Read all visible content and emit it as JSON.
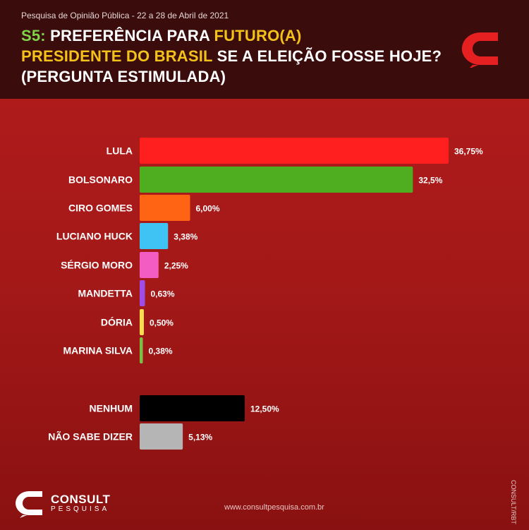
{
  "header": {
    "survey_info": "Pesquisa de Opinião Pública - 22 a 28 de Abril de 2021",
    "title_prefix": "S5:",
    "title_part1": " PREFERÊNCIA PARA ",
    "title_highlight1": "FUTURO(A)",
    "title_highlight2": "PRESIDENTE DO BRASIL",
    "title_part2": " SE A ELEIÇÃO FOSSE HOJE? (PERGUNTA ESTIMULADA)"
  },
  "chart_data": {
    "type": "bar",
    "orientation": "horizontal",
    "title": "S5: PREFERÊNCIA PARA FUTURO(A) PRESIDENTE DO BRASIL SE A ELEIÇÃO FOSSE HOJE? (PERGUNTA ESTIMULADA)",
    "xlim": [
      0,
      36.75
    ],
    "categories": [
      "LULA",
      "BOLSONARO",
      "CIRO GOMES",
      "LUCIANO HUCK",
      "SÉRGIO MORO",
      "MANDETTA",
      "DÓRIA",
      "MARINA SILVA",
      "NENHUM",
      "NÃO SABE DIZER"
    ],
    "values": [
      36.75,
      32.5,
      6.0,
      3.38,
      2.25,
      0.63,
      0.5,
      0.38,
      12.5,
      5.13
    ],
    "labels": [
      "36,75%",
      "32,5%",
      "6,00%",
      "3,38%",
      "2,25%",
      "0,63%",
      "0,50%",
      "0,38%",
      "12,50%",
      "5,13%"
    ],
    "colors": [
      "#ff1f1f",
      "#4fae1f",
      "#ff6314",
      "#3fc2f4",
      "#f25cc3",
      "#9f4de8",
      "#f7dc52",
      "#7bc043",
      "#000000",
      "#b5b5b5"
    ]
  },
  "footer": {
    "brand": "CONSULT",
    "brand_sub": "PESQUISA",
    "website": "www.consultpesquisa.com.br",
    "credit": "CONSULT/RBT"
  },
  "colors": {
    "header_bg": "#3a0c0c",
    "accent_green": "#7fd44a",
    "accent_yellow": "#f2c21b"
  }
}
